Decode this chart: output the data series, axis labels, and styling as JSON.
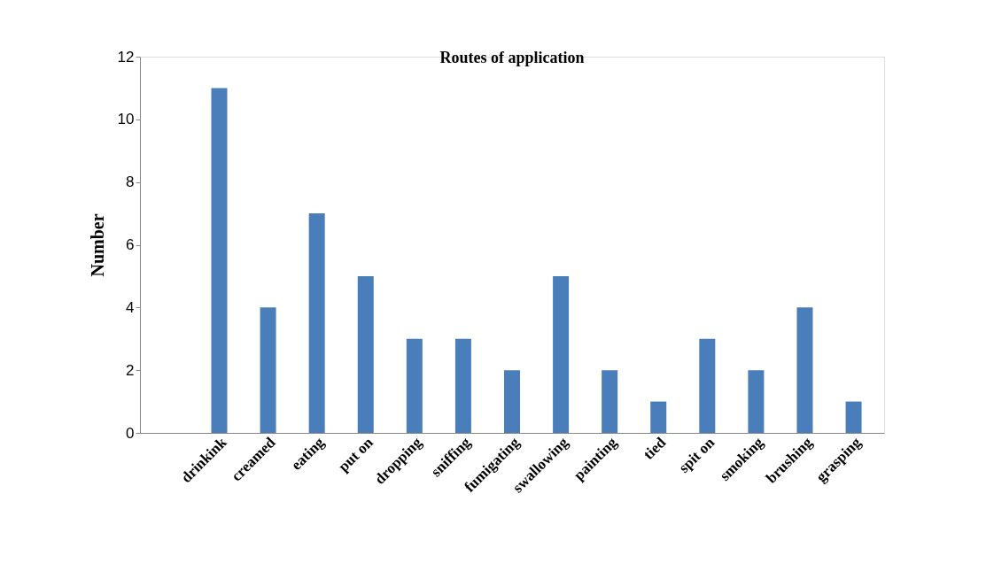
{
  "chart_data": {
    "type": "bar",
    "title": "Routes of application",
    "ylabel": "Number",
    "categories": [
      null,
      "drinkink",
      "creamed",
      "eating",
      "put on",
      "dropping",
      "sniffing",
      "fumigating",
      "swallowing",
      "painting",
      "tied",
      "spit on",
      "smoking",
      "brushing",
      "grasping"
    ],
    "values": [
      0,
      11,
      4,
      7,
      5,
      3,
      3,
      2,
      5,
      2,
      1,
      3,
      2,
      4,
      1
    ],
    "color": "#4a7ebb",
    "ylim": [
      0,
      12
    ],
    "yticks": [
      0,
      2,
      4,
      6,
      8,
      10,
      12
    ],
    "grid": false
  }
}
